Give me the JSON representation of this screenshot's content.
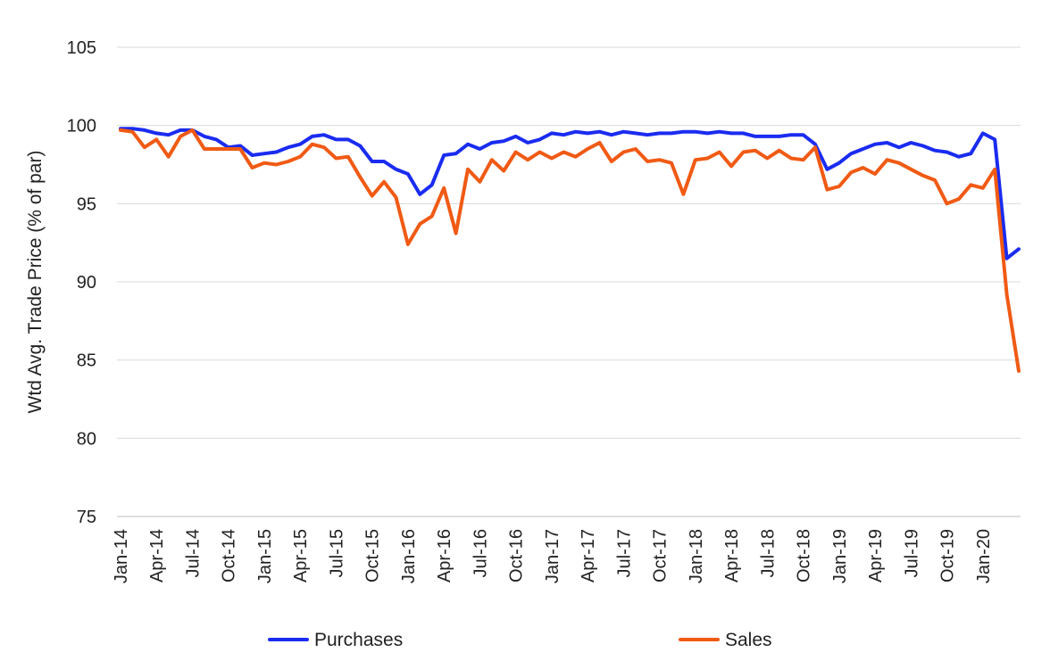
{
  "chart_data": {
    "type": "line",
    "title": "",
    "xlabel": "",
    "ylabel": "Wtd Avg. Trade Price (% of par)",
    "ylim": [
      75,
      105
    ],
    "yticks": [
      75,
      80,
      85,
      90,
      95,
      100,
      105
    ],
    "grid": true,
    "legend_position": "bottom",
    "x": [
      "Jan-14",
      "Feb-14",
      "Mar-14",
      "Apr-14",
      "May-14",
      "Jun-14",
      "Jul-14",
      "Aug-14",
      "Sep-14",
      "Oct-14",
      "Nov-14",
      "Dec-14",
      "Jan-15",
      "Feb-15",
      "Mar-15",
      "Apr-15",
      "May-15",
      "Jun-15",
      "Jul-15",
      "Aug-15",
      "Sep-15",
      "Oct-15",
      "Nov-15",
      "Dec-15",
      "Jan-16",
      "Feb-16",
      "Mar-16",
      "Apr-16",
      "May-16",
      "Jun-16",
      "Jul-16",
      "Aug-16",
      "Sep-16",
      "Oct-16",
      "Nov-16",
      "Dec-16",
      "Jan-17",
      "Feb-17",
      "Mar-17",
      "Apr-17",
      "May-17",
      "Jun-17",
      "Jul-17",
      "Aug-17",
      "Sep-17",
      "Oct-17",
      "Nov-17",
      "Dec-17",
      "Jan-18",
      "Feb-18",
      "Mar-18",
      "Apr-18",
      "May-18",
      "Jun-18",
      "Jul-18",
      "Aug-18",
      "Sep-18",
      "Oct-18",
      "Nov-18",
      "Dec-18",
      "Jan-19",
      "Feb-19",
      "Mar-19",
      "Apr-19",
      "May-19",
      "Jun-19",
      "Jul-19",
      "Aug-19",
      "Sep-19",
      "Oct-19",
      "Nov-19",
      "Dec-19",
      "Jan-20",
      "Feb-20",
      "Mar-20",
      "Apr-20"
    ],
    "x_tick_labels": [
      "Jan-14",
      "Apr-14",
      "Jul-14",
      "Oct-14",
      "Jan-15",
      "Apr-15",
      "Jul-15",
      "Oct-15",
      "Jan-16",
      "Apr-16",
      "Jul-16",
      "Oct-16",
      "Jan-17",
      "Apr-17",
      "Jul-17",
      "Oct-17",
      "Jan-18",
      "Apr-18",
      "Jul-18",
      "Oct-18",
      "Jan-19",
      "Apr-19",
      "Jul-19",
      "Oct-19",
      "Jan-20"
    ],
    "series": [
      {
        "name": "Purchases",
        "color": "#1a2cf0",
        "values": [
          99.8,
          99.8,
          99.7,
          99.5,
          99.4,
          99.7,
          99.7,
          99.3,
          99.1,
          98.6,
          98.7,
          98.1,
          98.2,
          98.3,
          98.6,
          98.8,
          99.3,
          99.4,
          99.1,
          99.1,
          98.7,
          97.7,
          97.7,
          97.2,
          96.9,
          95.6,
          96.2,
          98.1,
          98.2,
          98.8,
          98.5,
          98.9,
          99.0,
          99.3,
          98.9,
          99.1,
          99.5,
          99.4,
          99.6,
          99.5,
          99.6,
          99.4,
          99.6,
          99.5,
          99.4,
          99.5,
          99.5,
          99.6,
          99.6,
          99.5,
          99.6,
          99.5,
          99.5,
          99.3,
          99.3,
          99.3,
          99.4,
          99.4,
          98.8,
          97.2,
          97.6,
          98.2,
          98.5,
          98.8,
          98.9,
          98.6,
          98.9,
          98.7,
          98.4,
          98.3,
          98.0,
          98.2,
          99.5,
          99.1,
          91.5,
          92.1
        ]
      },
      {
        "name": "Sales",
        "color": "#f05a14",
        "values": [
          99.7,
          99.6,
          98.6,
          99.1,
          98.0,
          99.3,
          99.7,
          98.5,
          98.5,
          98.5,
          98.5,
          97.3,
          97.6,
          97.5,
          97.7,
          98.0,
          98.8,
          98.6,
          97.9,
          98.0,
          96.7,
          95.5,
          96.4,
          95.4,
          92.4,
          93.7,
          94.2,
          96.0,
          93.1,
          97.2,
          96.4,
          97.8,
          97.1,
          98.3,
          97.8,
          98.3,
          97.9,
          98.3,
          98.0,
          98.5,
          98.9,
          97.7,
          98.3,
          98.5,
          97.7,
          97.8,
          97.6,
          95.6,
          97.8,
          97.9,
          98.3,
          97.4,
          98.3,
          98.4,
          97.9,
          98.4,
          97.9,
          97.8,
          98.6,
          95.9,
          96.1,
          97.0,
          97.3,
          96.9,
          97.8,
          97.6,
          97.2,
          96.8,
          96.5,
          95.0,
          95.3,
          96.2,
          96.0,
          97.2,
          89.2,
          84.3
        ]
      }
    ]
  }
}
